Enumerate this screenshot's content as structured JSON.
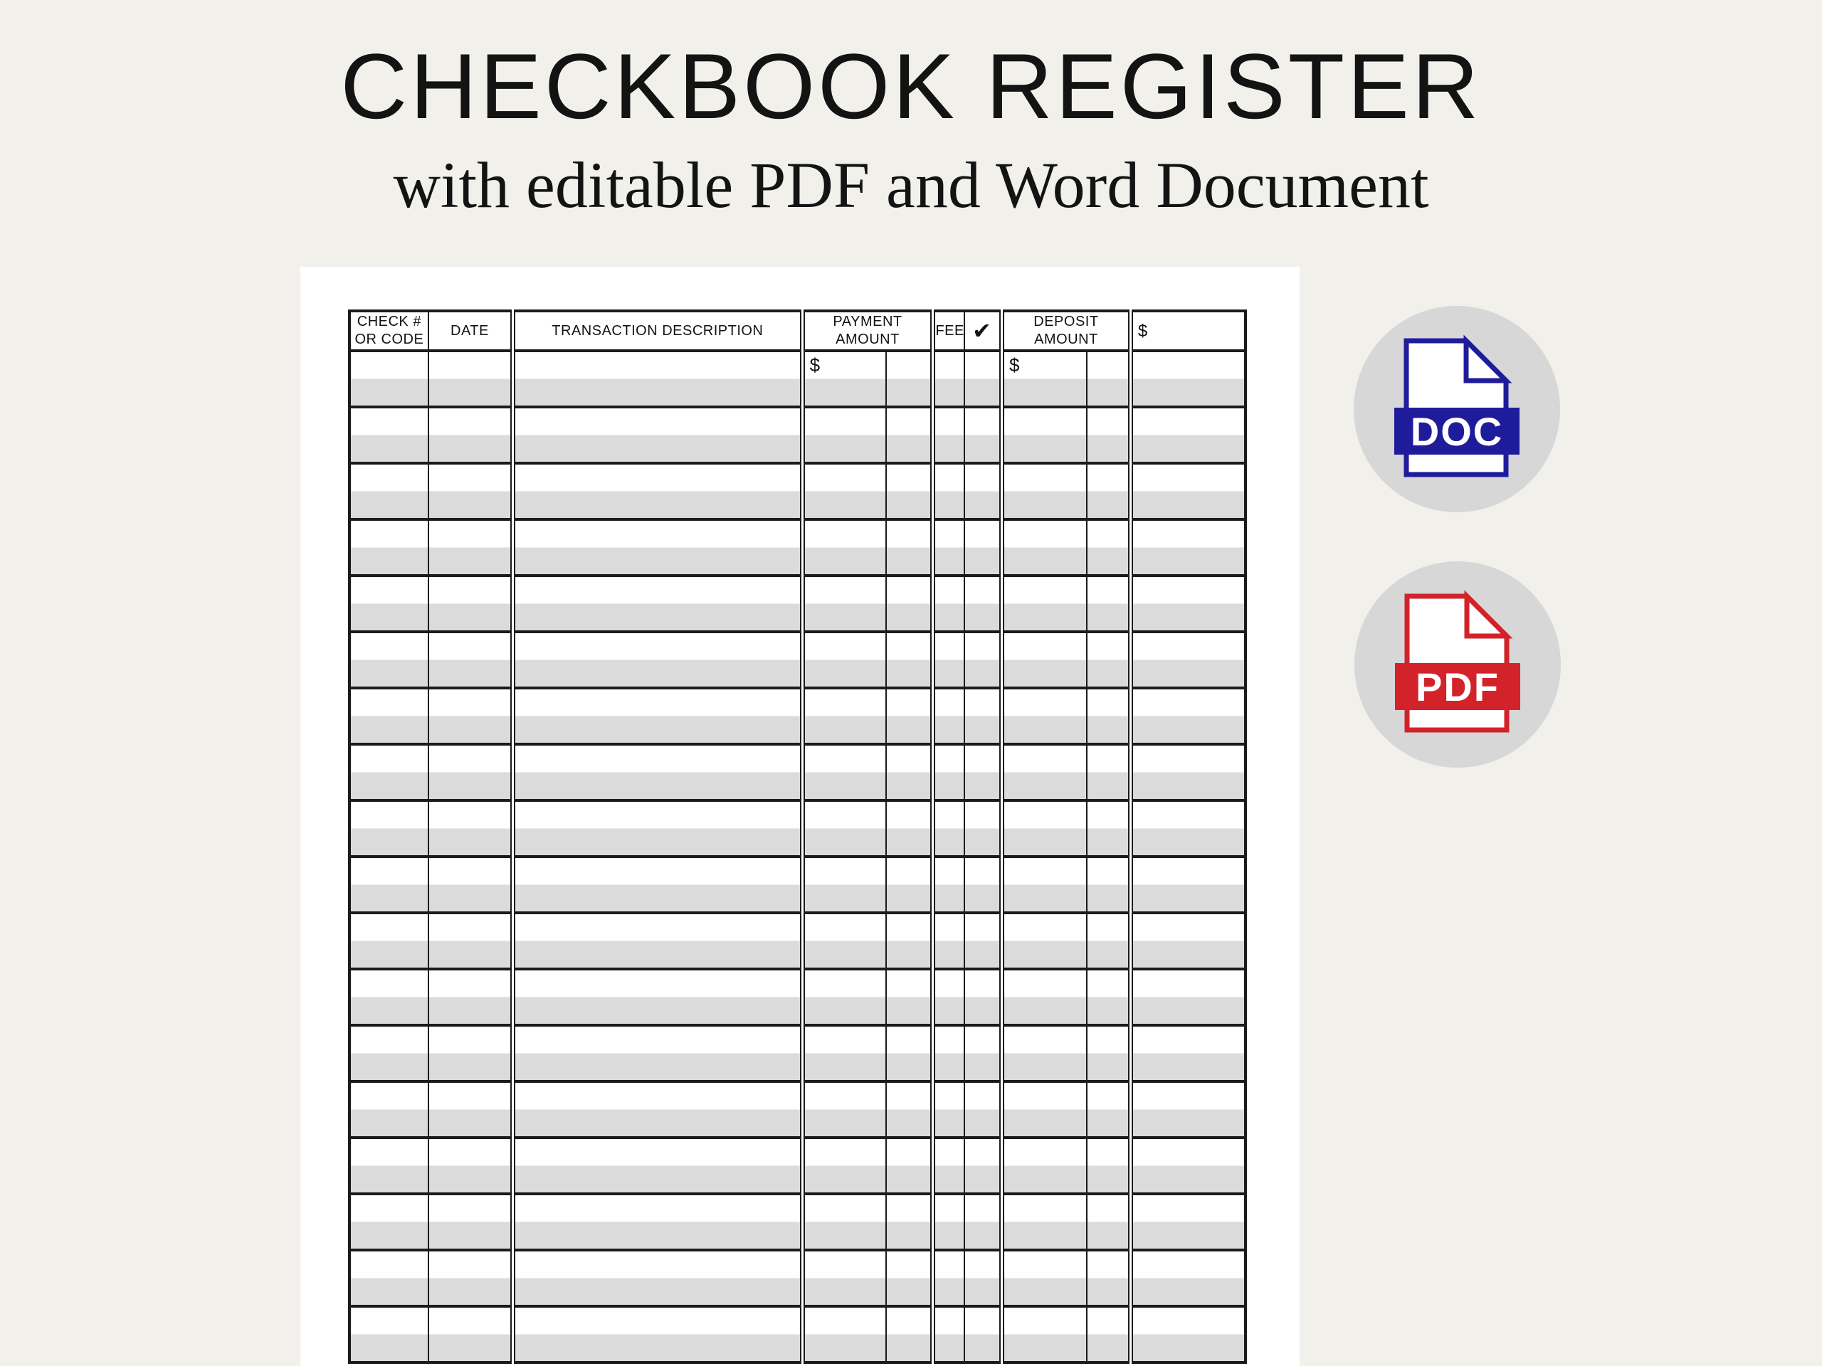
{
  "page": {
    "title": "CHECKBOOK REGISTER",
    "subtitle": "with editable PDF and Word Document"
  },
  "colors": {
    "background": "#f1f0ea",
    "page": "#ffffff",
    "grid": "#1b1b1b",
    "row-alt": "#dbdbdb",
    "text": "#131313",
    "doc": "#1f1c9c",
    "pdf": "#d2232a",
    "badge-circle": "#d7d7d7",
    "badge-label": "#ffffff"
  },
  "register": {
    "headers": {
      "check_number": "CHECK #\nOR CODE",
      "date": "DATE",
      "description": "TRANSACTION DESCRIPTION",
      "payment": "PAYMENT\nAMOUNT",
      "fee": "FEE",
      "cleared": "✔",
      "deposit": "DEPOSIT\nAMOUNT",
      "balance": "$"
    },
    "first_row": {
      "payment_prefix": "$",
      "deposit_prefix": "$"
    },
    "row_count": 18
  },
  "badges": [
    {
      "id": "doc",
      "label": "DOC"
    },
    {
      "id": "pdf",
      "label": "PDF"
    }
  ]
}
